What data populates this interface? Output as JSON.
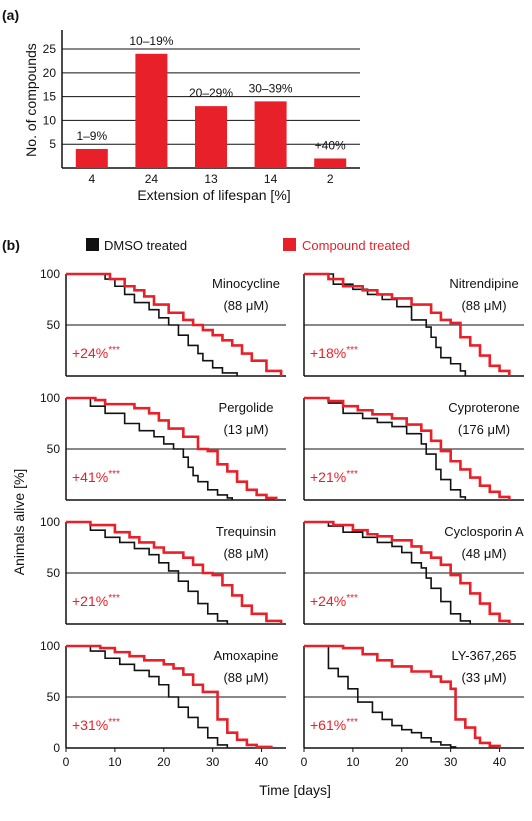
{
  "panel_a": {
    "label": "(a)",
    "xlabel": "Extension of lifespan [%]",
    "ylabel": "No. of compounds",
    "yticks": [
      "5",
      "10",
      "15",
      "20",
      "25"
    ],
    "bar_color": "#e8202a"
  },
  "panel_b": {
    "label": "(b)",
    "legend": [
      {
        "label": "DMSO treated",
        "color": "#111111"
      },
      {
        "label": "Compound treated",
        "color": "#e8202a"
      }
    ],
    "ylabel": "Animals alive [%]",
    "xlabel": "Time [days]",
    "yticks": [
      "0",
      "50",
      "100"
    ],
    "xticks": [
      "0",
      "10",
      "20",
      "30",
      "40"
    ],
    "stars": "***"
  },
  "chart_data": [
    {
      "type": "bar",
      "categories": [
        "4",
        "24",
        "13",
        "14",
        "2"
      ],
      "values": [
        4,
        24,
        13,
        14,
        2
      ],
      "bar_labels": [
        "1–9%",
        "10–19%",
        "20–29%",
        "30–39%",
        "+40%"
      ],
      "xlabel": "Extension of lifespan [%]",
      "ylabel": "No. of compounds",
      "ylim": [
        0,
        29
      ],
      "grid": "horizontal"
    },
    {
      "type": "line",
      "name": "Minocycline",
      "conc": "(88 μM)",
      "effect": "+24%",
      "xlim": [
        0,
        45
      ],
      "ylim": [
        0,
        100
      ],
      "series": [
        {
          "name": "DMSO treated",
          "x": [
            0,
            8,
            10,
            12,
            14,
            17,
            19,
            21,
            23,
            25,
            27,
            28,
            30,
            32,
            35
          ],
          "y": [
            100,
            95,
            88,
            80,
            72,
            65,
            57,
            50,
            40,
            30,
            22,
            15,
            8,
            3,
            0
          ]
        },
        {
          "name": "Compound treated",
          "x": [
            0,
            9,
            12,
            14,
            16,
            18,
            21,
            24,
            26,
            28,
            30,
            32,
            34,
            36,
            38,
            41,
            44
          ],
          "y": [
            100,
            95,
            88,
            84,
            78,
            70,
            62,
            55,
            50,
            45,
            40,
            35,
            30,
            22,
            15,
            5,
            0
          ]
        }
      ]
    },
    {
      "type": "line",
      "name": "Nitrendipine",
      "conc": "(88 μM)",
      "effect": "+18%",
      "xlim": [
        0,
        45
      ],
      "ylim": [
        0,
        100
      ],
      "series": [
        {
          "name": "DMSO treated",
          "x": [
            0,
            6,
            10,
            13,
            16,
            19,
            22,
            25,
            26,
            27,
            28,
            30,
            32,
            33
          ],
          "y": [
            100,
            90,
            85,
            80,
            75,
            68,
            55,
            48,
            38,
            28,
            18,
            12,
            5,
            0
          ]
        },
        {
          "name": "Compound treated",
          "x": [
            0,
            5,
            8,
            12,
            15,
            18,
            22,
            26,
            28,
            30,
            32,
            34,
            36,
            38,
            40,
            42
          ],
          "y": [
            100,
            95,
            88,
            84,
            80,
            76,
            70,
            62,
            55,
            52,
            38,
            30,
            20,
            10,
            5,
            0
          ]
        }
      ]
    },
    {
      "type": "line",
      "name": "Pergolide",
      "conc": "(13 μM)",
      "effect": "+41%",
      "xlim": [
        0,
        45
      ],
      "ylim": [
        0,
        100
      ],
      "series": [
        {
          "name": "DMSO treated",
          "x": [
            0,
            5,
            8,
            12,
            15,
            18,
            20,
            22,
            24,
            25,
            26,
            27,
            29,
            31,
            33,
            34
          ],
          "y": [
            100,
            92,
            85,
            75,
            68,
            62,
            55,
            50,
            42,
            32,
            24,
            18,
            10,
            5,
            2,
            0
          ]
        },
        {
          "name": "Compound treated",
          "x": [
            0,
            6,
            8,
            14,
            17,
            19,
            21,
            24,
            27,
            29,
            31,
            33,
            35,
            37,
            39,
            41,
            43
          ],
          "y": [
            100,
            98,
            94,
            90,
            85,
            78,
            70,
            62,
            50,
            48,
            35,
            28,
            18,
            10,
            5,
            2,
            0
          ]
        }
      ]
    },
    {
      "type": "line",
      "name": "Cyproterone",
      "conc": "(176 μM)",
      "effect": "+21%",
      "xlim": [
        0,
        45
      ],
      "ylim": [
        0,
        100
      ],
      "series": [
        {
          "name": "DMSO treated",
          "x": [
            0,
            5,
            8,
            12,
            15,
            18,
            21,
            24,
            25,
            27,
            28,
            30,
            32,
            33
          ],
          "y": [
            100,
            95,
            85,
            80,
            76,
            72,
            65,
            55,
            45,
            30,
            20,
            10,
            3,
            0
          ]
        },
        {
          "name": "Compound treated",
          "x": [
            0,
            5,
            8,
            11,
            14,
            18,
            21,
            24,
            26,
            28,
            30,
            32,
            34,
            36,
            38,
            40,
            42
          ],
          "y": [
            100,
            97,
            92,
            88,
            84,
            80,
            74,
            68,
            58,
            48,
            38,
            30,
            22,
            14,
            8,
            3,
            0
          ]
        }
      ]
    },
    {
      "type": "line",
      "name": "Trequinsin",
      "conc": "(88 μM)",
      "effect": "+21%",
      "xlim": [
        0,
        45
      ],
      "ylim": [
        0,
        100
      ],
      "series": [
        {
          "name": "DMSO treated",
          "x": [
            0,
            5,
            8,
            11,
            14,
            17,
            19,
            21,
            23,
            25,
            27,
            29,
            31,
            33
          ],
          "y": [
            100,
            92,
            85,
            80,
            74,
            68,
            60,
            52,
            42,
            32,
            20,
            10,
            3,
            0
          ]
        },
        {
          "name": "Compound treated",
          "x": [
            0,
            5,
            10,
            13,
            15,
            18,
            20,
            24,
            26,
            28,
            30,
            32,
            34,
            36,
            38,
            41,
            44
          ],
          "y": [
            100,
            97,
            90,
            85,
            80,
            75,
            70,
            65,
            58,
            50,
            48,
            38,
            28,
            18,
            10,
            3,
            0
          ]
        }
      ]
    },
    {
      "type": "line",
      "name": "Cyclosporin A",
      "conc": "(48 μM)",
      "effect": "+24%",
      "xlim": [
        0,
        45
      ],
      "ylim": [
        0,
        100
      ],
      "series": [
        {
          "name": "DMSO treated",
          "x": [
            0,
            5,
            8,
            12,
            15,
            18,
            20,
            22,
            24,
            25,
            26,
            28,
            30,
            32,
            34
          ],
          "y": [
            100,
            96,
            90,
            85,
            80,
            76,
            70,
            60,
            55,
            45,
            35,
            22,
            10,
            3,
            0
          ]
        },
        {
          "name": "Compound treated",
          "x": [
            0,
            6,
            10,
            13,
            15,
            18,
            22,
            24,
            26,
            28,
            30,
            32,
            34,
            36,
            38,
            40,
            42
          ],
          "y": [
            100,
            97,
            92,
            88,
            86,
            82,
            76,
            70,
            65,
            58,
            48,
            40,
            30,
            20,
            10,
            3,
            0
          ]
        }
      ]
    },
    {
      "type": "line",
      "name": "Amoxapine",
      "conc": "(88 μM)",
      "effect": "+31%",
      "xlim": [
        0,
        45
      ],
      "ylim": [
        0,
        100
      ],
      "series": [
        {
          "name": "DMSO treated",
          "x": [
            0,
            5,
            8,
            11,
            14,
            17,
            19,
            21,
            23,
            25,
            27,
            29,
            31,
            33
          ],
          "y": [
            100,
            95,
            88,
            82,
            76,
            70,
            62,
            50,
            40,
            30,
            20,
            10,
            3,
            0
          ]
        },
        {
          "name": "Compound treated",
          "x": [
            0,
            7,
            10,
            13,
            16,
            20,
            22,
            24,
            26,
            28,
            30,
            31,
            33,
            35,
            37,
            39,
            42
          ],
          "y": [
            100,
            98,
            94,
            90,
            86,
            82,
            78,
            72,
            62,
            55,
            55,
            28,
            15,
            8,
            3,
            1,
            0
          ]
        }
      ]
    },
    {
      "type": "line",
      "name": "LY-367,265",
      "conc": "(33 μM)",
      "effect": "+61%",
      "xlim": [
        0,
        45
      ],
      "ylim": [
        0,
        100
      ],
      "series": [
        {
          "name": "DMSO treated",
          "x": [
            0,
            5,
            7,
            9,
            11,
            14,
            16,
            18,
            20,
            22,
            24,
            26,
            28,
            30,
            31
          ],
          "y": [
            100,
            78,
            70,
            58,
            45,
            35,
            28,
            22,
            18,
            15,
            10,
            6,
            3,
            1,
            0
          ]
        },
        {
          "name": "Compound treated",
          "x": [
            0,
            8,
            12,
            15,
            18,
            22,
            26,
            28,
            30,
            31,
            33,
            35,
            36,
            38,
            40
          ],
          "y": [
            100,
            98,
            92,
            86,
            80,
            75,
            70,
            65,
            58,
            28,
            20,
            10,
            5,
            2,
            0
          ]
        }
      ]
    }
  ]
}
